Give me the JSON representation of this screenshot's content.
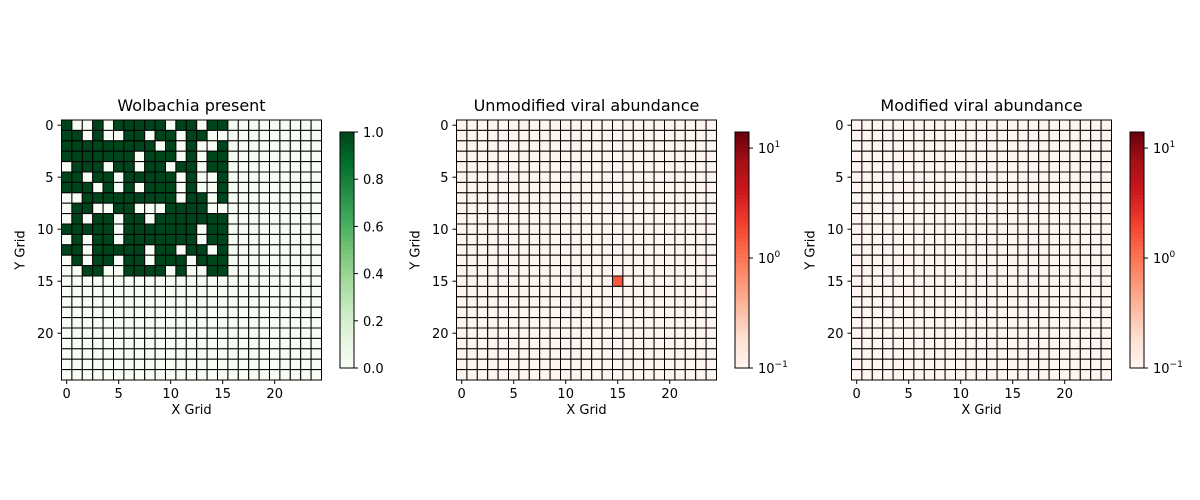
{
  "chart_data": [
    {
      "type": "heatmap",
      "title": "Wolbachia present",
      "xlabel": "X Grid",
      "ylabel": "Y Grid",
      "grid_size": 25,
      "xticks": [
        0,
        5,
        10,
        15,
        20
      ],
      "yticks": [
        0,
        5,
        10,
        15,
        20
      ],
      "colormap": "Greens",
      "scale": "linear",
      "vmin": 0,
      "vmax": 1,
      "colorbar_ticks": [
        {
          "value": 0.0,
          "label": "0.0"
        },
        {
          "value": 0.2,
          "label": "0.2"
        },
        {
          "value": 0.4,
          "label": "0.4"
        },
        {
          "value": 0.6,
          "label": "0.6"
        },
        {
          "value": 0.8,
          "label": "0.8"
        },
        {
          "value": 1.0,
          "label": "1.0"
        }
      ],
      "colors": {
        "low": "#f7fcf5",
        "high": "#00441b"
      },
      "present_rows": [
        "1001011111011011",
        "1101001101101100",
        "1111111110101001",
        "1111111011101011",
        "0111011011011011",
        "1101101111101001",
        "1110101011101001",
        "0011111111101101",
        "0110011000111100",
        "0101101101111111",
        "1111101111111011",
        "0101101111111011",
        "1101111101101101",
        "0101101101110111",
        "0011001111010011"
      ]
    },
    {
      "type": "heatmap",
      "title": "Unmodified viral abundance",
      "xlabel": "X Grid",
      "ylabel": "Y Grid",
      "grid_size": 25,
      "xticks": [
        0,
        5,
        10,
        15,
        20
      ],
      "yticks": [
        0,
        5,
        10,
        15,
        20
      ],
      "colormap": "Reds",
      "scale": "log",
      "vmin": 0.1,
      "vmax": 14,
      "colorbar_ticks": [
        {
          "value": 0.1,
          "label": "10^-1",
          "base": "10",
          "exp": "−1"
        },
        {
          "value": 1,
          "label": "10^0",
          "base": "10",
          "exp": "0"
        },
        {
          "value": 10,
          "label": "10^1",
          "base": "10",
          "exp": "1"
        }
      ],
      "colors": {
        "low": "#fff5f0",
        "high": "#67000d"
      },
      "nonzero_cells": [
        {
          "x": 15,
          "y": 15,
          "value": 1.5
        }
      ]
    },
    {
      "type": "heatmap",
      "title": "Modified viral abundance",
      "xlabel": "X Grid",
      "ylabel": "Y Grid",
      "grid_size": 25,
      "xticks": [
        0,
        5,
        10,
        15,
        20
      ],
      "yticks": [
        0,
        5,
        10,
        15,
        20
      ],
      "colormap": "Reds",
      "scale": "log",
      "vmin": 0.1,
      "vmax": 14,
      "colorbar_ticks": [
        {
          "value": 0.1,
          "label": "10^-1",
          "base": "10",
          "exp": "−1"
        },
        {
          "value": 1,
          "label": "10^0",
          "base": "10",
          "exp": "0"
        },
        {
          "value": 10,
          "label": "10^1",
          "base": "10",
          "exp": "1"
        }
      ],
      "colors": {
        "low": "#fff5f0",
        "high": "#67000d"
      },
      "nonzero_cells": []
    }
  ]
}
